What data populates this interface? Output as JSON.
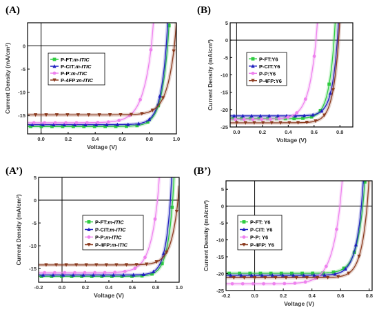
{
  "chart_data": [
    {
      "type": "line",
      "panel_label": "(A)",
      "xlabel": "Voltage (V)",
      "ylabel": "Current Density (mA/cm²)",
      "xlim": [
        -0.1,
        1.0
      ],
      "ylim": [
        -19,
        5
      ],
      "xticks": [
        0.0,
        0.2,
        0.4,
        0.6,
        0.8,
        1.0
      ],
      "yticks": [
        0,
        -5,
        -10,
        -15
      ],
      "ytick_labels": [
        "0",
        "-5",
        "-10",
        "-15"
      ],
      "legend_position": "upper-left",
      "series": [
        {
          "name": "P-FT:",
          "name_italic": "m-ITIC",
          "color": "#2ecc40",
          "marker": "square",
          "jsc": -17.4,
          "voc": 0.935,
          "ff": 0.66
        },
        {
          "name": "P-CIT:",
          "name_italic": "m-ITIC",
          "color": "#1f1fbf",
          "marker": "triangle",
          "jsc": -17.0,
          "voc": 0.925,
          "ff": 0.68
        },
        {
          "name": "P-P:",
          "name_italic": "m-ITIC",
          "color": "#ee82ee",
          "marker": "circle",
          "jsc": -16.6,
          "voc": 0.815,
          "ff": 0.58
        },
        {
          "name": "P-4FP:",
          "name_italic": "m-ITIC",
          "color": "#8b3a1e",
          "marker": "triangle-down",
          "jsc": -14.9,
          "voc": 0.985,
          "ff": 0.62
        }
      ]
    },
    {
      "type": "line",
      "panel_label": "(B)",
      "xlabel": "Voltage (V)",
      "ylabel": "Current Density (mA/cm²)",
      "xlim": [
        -0.05,
        0.9
      ],
      "ylim": [
        -25,
        5
      ],
      "xticks": [
        0.0,
        0.2,
        0.4,
        0.6,
        0.8
      ],
      "yticks": [
        5,
        0,
        -5,
        -10,
        -15,
        -20,
        -25
      ],
      "ytick_labels": [
        "5",
        "0",
        "-5",
        "-10",
        "-15",
        "-20",
        "-25"
      ],
      "legend_position": "upper-left",
      "series": [
        {
          "name": "P-FT:Y6",
          "name_italic": "",
          "color": "#2ecc40",
          "marker": "square",
          "jsc": -22.6,
          "voc": 0.755,
          "ff": 0.68
        },
        {
          "name": "P-CIT:Y6",
          "name_italic": "",
          "color": "#1f1fbf",
          "marker": "triangle",
          "jsc": -21.8,
          "voc": 0.78,
          "ff": 0.69
        },
        {
          "name": "P-P:Y6",
          "name_italic": "",
          "color": "#ee82ee",
          "marker": "circle",
          "jsc": -22.8,
          "voc": 0.615,
          "ff": 0.62
        },
        {
          "name": "P-4FP:Y6",
          "name_italic": "",
          "color": "#8b3a1e",
          "marker": "triangle-down",
          "jsc": -23.8,
          "voc": 0.79,
          "ff": 0.68
        }
      ]
    },
    {
      "type": "line",
      "panel_label": "(A’)",
      "xlabel": "Voltage (V)",
      "ylabel": "Current Density (mA/cm²)",
      "xlim": [
        -0.2,
        1.0
      ],
      "ylim": [
        -18,
        5
      ],
      "xticks": [
        -0.2,
        0.0,
        0.2,
        0.4,
        0.6,
        0.8,
        1.0
      ],
      "yticks": [
        5,
        0,
        -5,
        -10,
        -15
      ],
      "ytick_labels": [
        "5",
        "0",
        "-5",
        "-10",
        "-15"
      ],
      "legend_position": "center-right",
      "series": [
        {
          "name": "P-FT:",
          "name_italic": "m-ITIC",
          "color": "#2ecc40",
          "marker": "square",
          "jsc": -16.7,
          "voc": 0.945,
          "ff": 0.66
        },
        {
          "name": "P-CIT:",
          "name_italic": "m-ITIC",
          "color": "#1f1fbf",
          "marker": "triangle",
          "jsc": -16.4,
          "voc": 0.925,
          "ff": 0.68
        },
        {
          "name": "P-P:",
          "name_italic": "m-ITIC",
          "color": "#ee82ee",
          "marker": "circle",
          "jsc": -15.9,
          "voc": 0.815,
          "ff": 0.58
        },
        {
          "name": "P-4FP:",
          "name_italic": "m-ITIC",
          "color": "#8b3a1e",
          "marker": "triangle-down",
          "jsc": -14.2,
          "voc": 0.99,
          "ff": 0.62
        }
      ]
    },
    {
      "type": "line",
      "panel_label": "(B’)",
      "xlabel": "Voltage (V)",
      "ylabel": "Current Density (mA/cm²)",
      "xlim": [
        -0.2,
        0.82
      ],
      "ylim": [
        -25,
        7.5
      ],
      "xticks": [
        -0.2,
        0.0,
        0.2,
        0.4,
        0.6,
        0.8
      ],
      "yticks": [
        5,
        0,
        -5,
        -10,
        -15,
        -20,
        -25
      ],
      "ytick_labels": [
        "5",
        "0",
        "-5",
        "-10",
        "-15",
        "-20",
        "-25"
      ],
      "legend_position": "center-left",
      "series": [
        {
          "name": "P-FT: Y6",
          "name_italic": "",
          "color": "#2ecc40",
          "marker": "square",
          "jsc": -19.9,
          "voc": 0.755,
          "ff": 0.66
        },
        {
          "name": "P-CIT: Y6",
          "name_italic": "",
          "color": "#1f1fbf",
          "marker": "triangle",
          "jsc": -20.5,
          "voc": 0.745,
          "ff": 0.68
        },
        {
          "name": "P-P: Y6",
          "name_italic": "",
          "color": "#ee82ee",
          "marker": "circle",
          "jsc": -23.0,
          "voc": 0.595,
          "ff": 0.6
        },
        {
          "name": "P-4FP: Y6",
          "name_italic": "",
          "color": "#8b3a1e",
          "marker": "triangle-down",
          "jsc": -21.2,
          "voc": 0.785,
          "ff": 0.68
        }
      ]
    }
  ]
}
